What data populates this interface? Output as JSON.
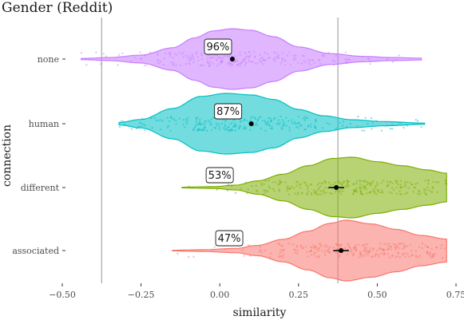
{
  "chart_data": {
    "type": "violin",
    "title": "Gender (Reddit)",
    "xlabel": "similarity",
    "ylabel": "connection",
    "xlim": [
      -0.5,
      0.75
    ],
    "x_ticks": [
      -0.5,
      -0.25,
      0.0,
      0.25,
      0.5,
      0.75
    ],
    "x_tick_labels": [
      "−0.50",
      "−0.25",
      "0.00",
      "0.25",
      "0.50",
      "0.75"
    ],
    "categories": [
      "none",
      "human",
      "different",
      "associated"
    ],
    "reference_lines": [
      -0.375,
      0.375
    ],
    "grid": false,
    "legend": "none",
    "series": [
      {
        "category": "none",
        "color": "#C77CFF",
        "percent_label": "96%",
        "mean": 0.04,
        "ci": [
          0.035,
          0.045
        ],
        "range": [
          -0.44,
          0.64
        ],
        "density": [
          [
            -0.44,
            0.02
          ],
          [
            -0.35,
            0.05
          ],
          [
            -0.25,
            0.13
          ],
          [
            -0.15,
            0.37
          ],
          [
            -0.08,
            0.7
          ],
          [
            -0.02,
            0.93
          ],
          [
            0.04,
            1.0
          ],
          [
            0.1,
            0.95
          ],
          [
            0.17,
            0.74
          ],
          [
            0.25,
            0.4
          ],
          [
            0.35,
            0.18
          ],
          [
            0.45,
            0.09
          ],
          [
            0.55,
            0.05
          ],
          [
            0.64,
            0.03
          ]
        ]
      },
      {
        "category": "human",
        "color": "#00BFC4",
        "percent_label": "87%",
        "mean": 0.1,
        "ci": [
          0.093,
          0.107
        ],
        "range": [
          -0.32,
          0.65
        ],
        "density": [
          [
            -0.32,
            0.04
          ],
          [
            -0.25,
            0.14
          ],
          [
            -0.15,
            0.5
          ],
          [
            -0.06,
            0.9
          ],
          [
            0.02,
            1.0
          ],
          [
            0.1,
            0.95
          ],
          [
            0.17,
            0.8
          ],
          [
            0.25,
            0.47
          ],
          [
            0.33,
            0.26
          ],
          [
            0.42,
            0.13
          ],
          [
            0.52,
            0.07
          ],
          [
            0.65,
            0.02
          ]
        ]
      },
      {
        "category": "different",
        "color": "#7CAE00",
        "percent_label": "53%",
        "mean": 0.37,
        "ci": [
          0.345,
          0.395
        ],
        "range": [
          -0.12,
          0.72
        ],
        "density": [
          [
            -0.12,
            0.01
          ],
          [
            -0.02,
            0.03
          ],
          [
            0.05,
            0.08
          ],
          [
            0.12,
            0.22
          ],
          [
            0.2,
            0.44
          ],
          [
            0.28,
            0.72
          ],
          [
            0.36,
            0.96
          ],
          [
            0.42,
            1.0
          ],
          [
            0.5,
            0.85
          ],
          [
            0.58,
            0.72
          ],
          [
            0.66,
            0.58
          ],
          [
            0.72,
            0.47
          ]
        ]
      },
      {
        "category": "associated",
        "color": "#F8766D",
        "percent_label": "47%",
        "mean": 0.385,
        "ci": [
          0.36,
          0.41
        ],
        "range": [
          -0.15,
          0.72
        ],
        "density": [
          [
            -0.15,
            0.01
          ],
          [
            -0.05,
            0.03
          ],
          [
            0.05,
            0.07
          ],
          [
            0.12,
            0.17
          ],
          [
            0.2,
            0.37
          ],
          [
            0.28,
            0.64
          ],
          [
            0.35,
            0.9
          ],
          [
            0.4,
            1.0
          ],
          [
            0.48,
            0.88
          ],
          [
            0.56,
            0.7
          ],
          [
            0.64,
            0.5
          ],
          [
            0.72,
            0.38
          ]
        ]
      }
    ]
  }
}
